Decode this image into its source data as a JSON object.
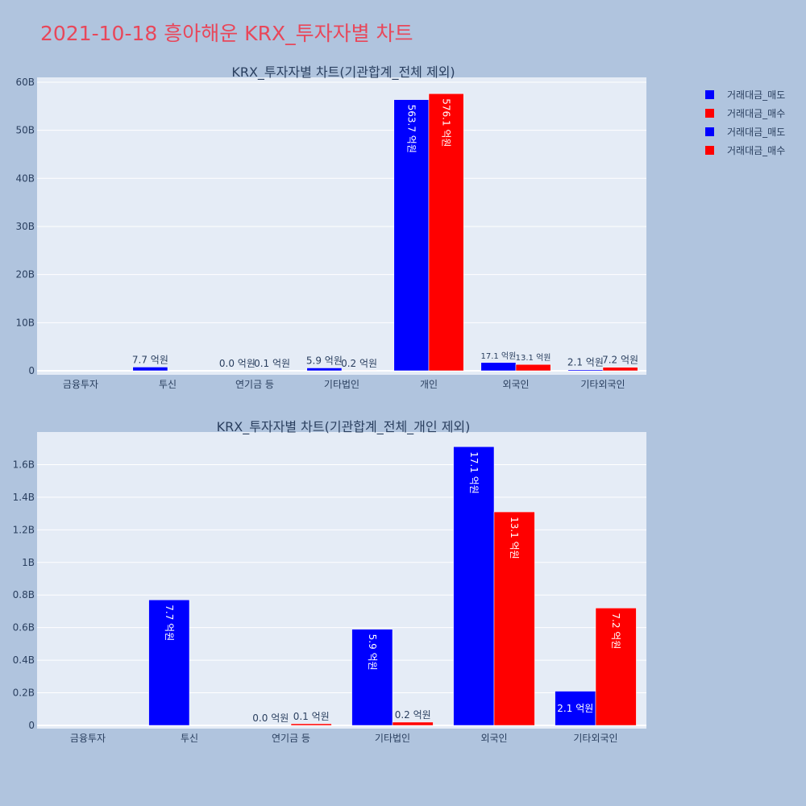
{
  "page_title": "2021-10-18 흥아해운 KRX_투자자별 차트",
  "colors": {
    "sell": "#0000ff",
    "buy": "#ff0000",
    "title": "#e8475a",
    "background": "#b0c4de",
    "plot_bg": "#e5ecf6"
  },
  "legend": [
    {
      "label": "거래대금_매도",
      "color": "#0000ff"
    },
    {
      "label": "거래대금_매수",
      "color": "#ff0000"
    },
    {
      "label": "거래대금_매도",
      "color": "#0000ff"
    },
    {
      "label": "거래대금_매수",
      "color": "#ff0000"
    }
  ],
  "chart_data": [
    {
      "type": "bar",
      "title": "KRX_투자자별 차트(기관합계_전체 제외)",
      "categories": [
        "금융투자",
        "투신",
        "연기금 등",
        "기타법인",
        "개인",
        "외국인",
        "기타외국인"
      ],
      "series": [
        {
          "name": "거래대금_매도",
          "color": "#0000ff",
          "values": [
            0,
            770000000,
            0,
            590000000,
            56370000000,
            1710000000,
            210000000
          ],
          "labels": [
            "",
            "7.7 억원",
            "0.0 억원",
            "5.9 억원",
            "563.7 억원",
            "17.1 억원",
            "2.1 억원"
          ]
        },
        {
          "name": "거래대금_매수",
          "color": "#ff0000",
          "values": [
            0,
            0,
            10000000,
            20000000,
            57610000000,
            1310000000,
            720000000
          ],
          "labels": [
            "",
            "",
            "0.1 억원",
            "0.2 억원",
            "576.1 억원",
            "13.1 억원",
            "7.2 억원"
          ]
        }
      ],
      "yticks": [
        0,
        10000000000,
        20000000000,
        30000000000,
        40000000000,
        50000000000,
        60000000000
      ],
      "ytick_labels": [
        "0",
        "10B",
        "20B",
        "30B",
        "40B",
        "50B",
        "60B"
      ],
      "ylim": [
        0,
        61000000000
      ],
      "grid": true
    },
    {
      "type": "bar",
      "title": "KRX_투자자별 차트(기관합계_전체_개인 제외)",
      "categories": [
        "금융투자",
        "투신",
        "연기금 등",
        "기타법인",
        "외국인",
        "기타외국인"
      ],
      "series": [
        {
          "name": "거래대금_매도",
          "color": "#0000ff",
          "values": [
            0,
            770000000,
            0,
            590000000,
            1710000000,
            210000000
          ],
          "labels": [
            "",
            "7.7 억원",
            "0.0 억원",
            "5.9 억원",
            "17.1 억원",
            "2.1 억원"
          ]
        },
        {
          "name": "거래대금_매수",
          "color": "#ff0000",
          "values": [
            0,
            0,
            10000000,
            20000000,
            1310000000,
            720000000
          ],
          "labels": [
            "",
            "",
            "0.1 억원",
            "0.2 억원",
            "13.1 억원",
            "7.2 억원"
          ]
        }
      ],
      "yticks": [
        0,
        200000000,
        400000000,
        600000000,
        800000000,
        1000000000,
        1200000000,
        1400000000,
        1600000000
      ],
      "ytick_labels": [
        "0",
        "0.2B",
        "0.4B",
        "0.6B",
        "0.8B",
        "1B",
        "1.2B",
        "1.4B",
        "1.6B"
      ],
      "ylim": [
        0,
        1800000000
      ],
      "grid": true
    }
  ]
}
